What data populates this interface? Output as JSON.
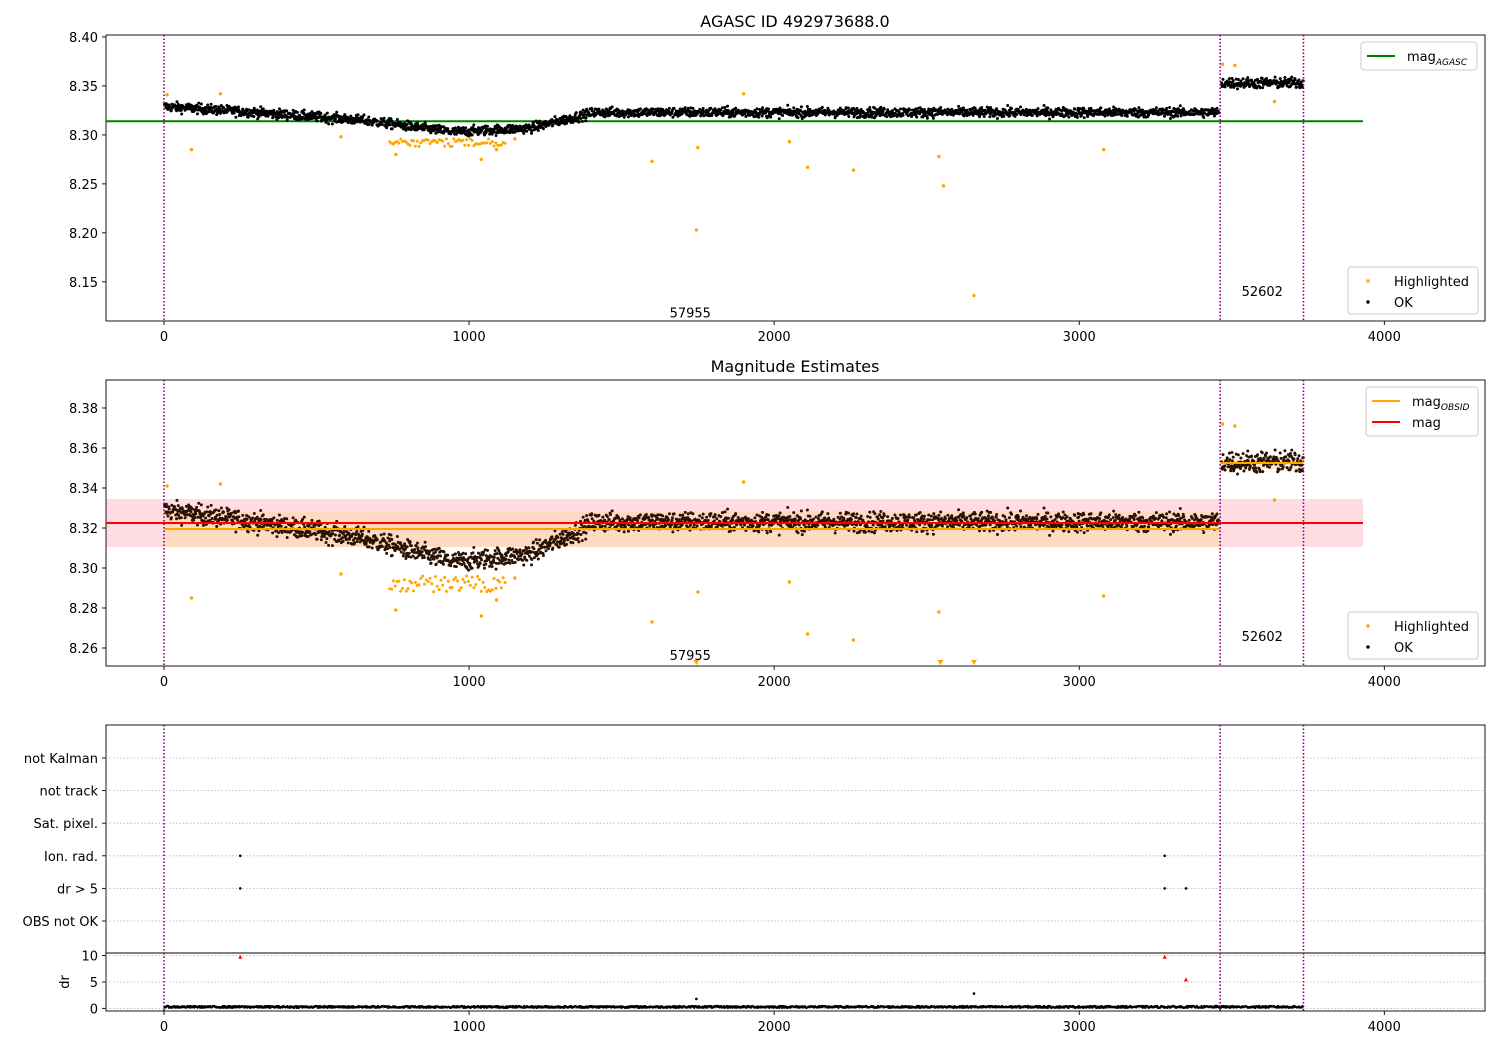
{
  "colors": {
    "ok": "#000000",
    "highlighted": "#ffa500",
    "mag_agasc": "#008000",
    "mag_obsid": "#ffa500",
    "mag": "#ff0000",
    "obs_boundary": "#800080",
    "band_red": "#ffc0cb",
    "band_orange": "#ffd8a8",
    "flag_point": "#000000",
    "dr_high": "#ff0000"
  },
  "chart_data": [
    {
      "id": "agasc",
      "type": "scatter",
      "title": "AGASC ID 492973688.0",
      "xlim": [
        -190,
        4330
      ],
      "ylim": [
        8.11,
        8.402
      ],
      "xticks": [
        "0",
        "1000",
        "2000",
        "3000",
        "4000"
      ],
      "yticks": [
        "8.15",
        "8.20",
        "8.25",
        "8.30",
        "8.35",
        "8.40"
      ],
      "obs_boundaries": [
        0,
        3462,
        3735
      ],
      "obsid_labels": [
        {
          "text": "57955",
          "x": 1725,
          "y": 8.1135
        },
        {
          "text": "52602",
          "x": 3600,
          "y": 8.1355
        }
      ],
      "hlines": [
        {
          "name": "mag_AGASC",
          "y": 8.314,
          "x": [
            -190,
            3930
          ],
          "color": "mag_agasc"
        }
      ],
      "highlighted_outliers": [
        [
          10,
          8.341
        ],
        [
          90,
          8.285
        ],
        [
          185,
          8.342
        ],
        [
          580,
          8.298
        ],
        [
          760,
          8.28
        ],
        [
          1040,
          8.275
        ],
        [
          1090,
          8.285
        ],
        [
          1150,
          8.296
        ],
        [
          1600,
          8.273
        ],
        [
          1750,
          8.287
        ],
        [
          1900,
          8.342
        ],
        [
          2050,
          8.293
        ],
        [
          2110,
          8.267
        ],
        [
          2260,
          8.264
        ],
        [
          2540,
          8.278
        ],
        [
          2555,
          8.248
        ],
        [
          1745,
          8.203
        ],
        [
          2655,
          8.136
        ],
        [
          3080,
          8.285
        ],
        [
          3470,
          8.372
        ],
        [
          3510,
          8.371
        ],
        [
          3640,
          8.334
        ]
      ],
      "legends": [
        {
          "position": "upper right",
          "entries": [
            {
              "label": "mag",
              "sub": "AGASC"
            }
          ]
        },
        {
          "position": "lower right",
          "entries": [
            {
              "label": "Highlighted"
            },
            {
              "label": "OK"
            }
          ]
        }
      ]
    },
    {
      "id": "estimates",
      "type": "scatter",
      "title": "Magnitude Estimates",
      "xlim": [
        -190,
        4330
      ],
      "ylim": [
        8.251,
        8.394
      ],
      "xticks": [
        "0",
        "1000",
        "2000",
        "3000",
        "4000"
      ],
      "yticks": [
        "8.26",
        "8.28",
        "8.30",
        "8.32",
        "8.34",
        "8.36",
        "8.38"
      ],
      "obs_boundaries": [
        0,
        3462,
        3735
      ],
      "obsid_labels": [
        {
          "text": "57955",
          "x": 1725,
          "y": 8.254
        },
        {
          "text": "52602",
          "x": 3600,
          "y": 8.2635
        }
      ],
      "hlines": [
        {
          "name": "mag_OBSID",
          "y": 8.3195,
          "x": [
            0,
            3462
          ],
          "color": "mag_obsid"
        },
        {
          "name": "mag_OBSID",
          "y": 8.3525,
          "x": [
            3462,
            3735
          ],
          "color": "mag_obsid"
        },
        {
          "name": "mag",
          "y": 8.3225,
          "x": [
            -190,
            3930
          ],
          "color": "mag"
        }
      ],
      "bands": [
        {
          "y": [
            8.3105,
            8.3345
          ],
          "x": [
            -190,
            3930
          ],
          "color": "band_red"
        },
        {
          "y": [
            8.3105,
            8.3285
          ],
          "x": [
            0,
            3462
          ],
          "color": "band_orange"
        }
      ],
      "highlighted_outliers": [
        [
          10,
          8.341
        ],
        [
          90,
          8.285
        ],
        [
          185,
          8.342
        ],
        [
          580,
          8.297
        ],
        [
          760,
          8.279
        ],
        [
          1040,
          8.276
        ],
        [
          1090,
          8.284
        ],
        [
          1150,
          8.295
        ],
        [
          1600,
          8.273
        ],
        [
          1750,
          8.288
        ],
        [
          1900,
          8.343
        ],
        [
          2050,
          8.293
        ],
        [
          2110,
          8.267
        ],
        [
          2260,
          8.264
        ],
        [
          2540,
          8.278
        ],
        [
          3080,
          8.286
        ],
        [
          3470,
          8.372
        ],
        [
          3510,
          8.371
        ],
        [
          3640,
          8.334
        ]
      ],
      "clipped_markers": [
        1745,
        2545,
        2655
      ],
      "legends": [
        {
          "position": "upper right",
          "entries": [
            {
              "label": "mag",
              "sub": "OBSID"
            },
            {
              "label": "mag"
            }
          ]
        },
        {
          "position": "lower right",
          "entries": [
            {
              "label": "Highlighted"
            },
            {
              "label": "OK"
            }
          ]
        }
      ]
    },
    {
      "id": "flags",
      "type": "scatter",
      "xlim": [
        -190,
        4330
      ],
      "categories": [
        "OBS not OK",
        "dr > 5",
        "Ion. rad.",
        "Sat. pixel.",
        "not track",
        "not Kalman"
      ],
      "points": [
        {
          "category": "Ion. rad.",
          "x": 250
        },
        {
          "category": "Ion. rad.",
          "x": 3280
        },
        {
          "category": "dr > 5",
          "x": 250
        },
        {
          "category": "dr > 5",
          "x": 3280
        },
        {
          "category": "dr > 5",
          "x": 3350
        }
      ],
      "obs_boundaries": [
        0,
        3462,
        3735
      ]
    },
    {
      "id": "dr",
      "type": "scatter",
      "ylabel": "dr",
      "xlim": [
        -190,
        4330
      ],
      "ylim": [
        -0.5,
        10.5
      ],
      "xticks": [
        "0",
        "1000",
        "2000",
        "3000",
        "4000"
      ],
      "yticks": [
        "0",
        "5",
        "10"
      ],
      "high_points": [
        [
          250,
          9.8
        ],
        [
          3280,
          9.8
        ],
        [
          3350,
          5.5
        ]
      ],
      "outliers": [
        [
          1745,
          1.8
        ],
        [
          2655,
          2.8
        ]
      ],
      "obs_boundaries": [
        0,
        3462,
        3735
      ]
    }
  ]
}
